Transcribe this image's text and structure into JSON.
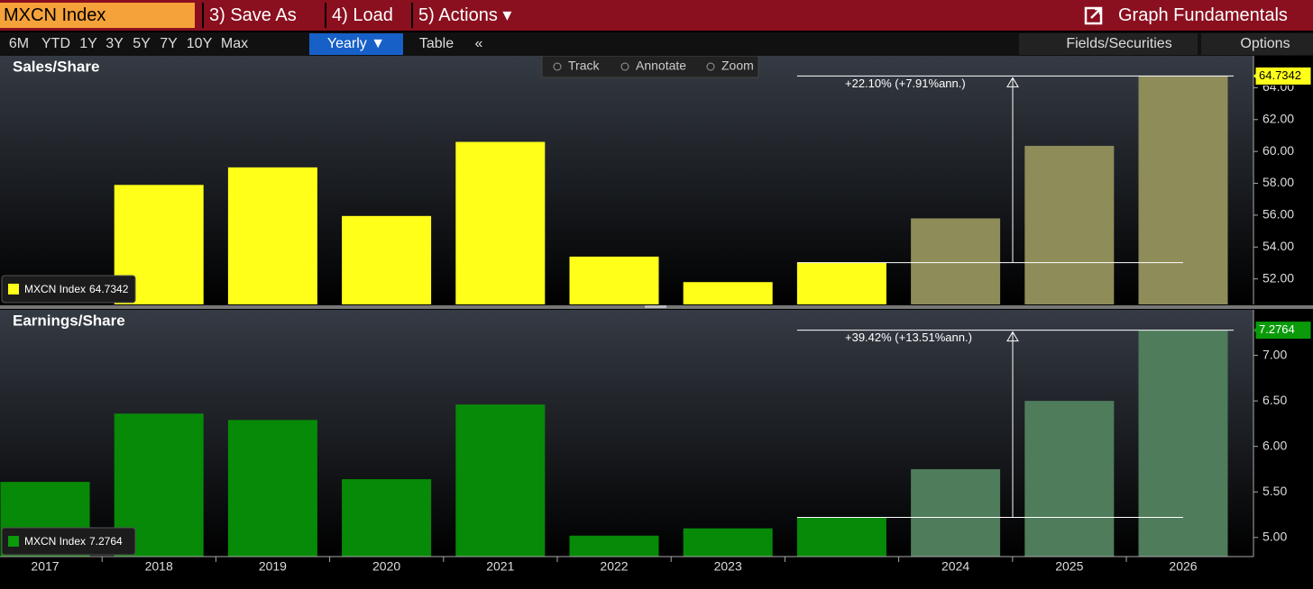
{
  "top_bar": {
    "security": "MXCN Index",
    "menu": [
      "3) Save As",
      "4) Load",
      "5) Actions ▾"
    ],
    "function_name": "Graph Fundamentals"
  },
  "range_bar": {
    "buttons": [
      "6M",
      "YTD",
      "1Y",
      "3Y",
      "5Y",
      "7Y",
      "10Y",
      "Max"
    ],
    "period": "Yearly ▼",
    "table": "Table",
    "collapse": "«",
    "right_buttons": [
      "Fields/Securities",
      "Options"
    ]
  },
  "chart_tools": [
    "Track",
    "Annotate",
    "Zoom"
  ],
  "chart_data": [
    {
      "type": "bar",
      "title": "Sales/Share",
      "series_name": "MXCN Index",
      "categories": [
        "2017",
        "2018",
        "2019",
        "2020",
        "2021",
        "2022",
        "2023",
        null,
        "2024",
        "2025",
        "2026"
      ],
      "values": [
        null,
        57.9,
        59.0,
        55.95,
        60.6,
        53.4,
        51.8,
        53.02,
        55.8,
        60.35,
        64.7342
      ],
      "value_labels": [
        null,
        null,
        null,
        null,
        null,
        null,
        null,
        null,
        null,
        null,
        "64.7342"
      ],
      "bar_colors": [
        "#ffff1a",
        "#ffff1a",
        "#ffff1a",
        "#ffff1a",
        "#ffff1a",
        "#ffff1a",
        "#ffff1a",
        "#ffff1a",
        "#8e8c58",
        "#8e8c58",
        "#8e8c58"
      ],
      "annotation": "+22.10% (+7.91%ann.)",
      "ylim": [
        50.4,
        66.0
      ],
      "yticks": [
        {
          "value": 52,
          "label": "52.00"
        },
        {
          "value": 54,
          "label": "54.00"
        },
        {
          "value": 56,
          "label": "56.00"
        },
        {
          "value": 58,
          "label": "58.00"
        },
        {
          "value": 60,
          "label": "60.00"
        },
        {
          "value": 62,
          "label": "62.00"
        },
        {
          "value": 64,
          "label": "64.00"
        }
      ]
    },
    {
      "type": "bar",
      "title": "Earnings/Share",
      "series_name": "MXCN Index",
      "categories": [
        "2017",
        "2018",
        "2019",
        "2020",
        "2021",
        "2022",
        "2023",
        null,
        "2024",
        "2025",
        "2026"
      ],
      "values": [
        5.61,
        6.36,
        6.29,
        5.64,
        6.46,
        5.02,
        5.1,
        5.22,
        5.75,
        6.5,
        7.2764
      ],
      "value_labels": [
        null,
        null,
        null,
        null,
        null,
        null,
        null,
        null,
        null,
        null,
        "7.2764"
      ],
      "bar_colors": [
        "#078a07",
        "#078a07",
        "#078a07",
        "#078a07",
        "#078a07",
        "#078a07",
        "#078a07",
        "#078a07",
        "#4f7c5b",
        "#4f7c5b",
        "#4f7c5b"
      ],
      "annotation": "+39.42% (+13.51%ann.)",
      "ylim": [
        4.79,
        7.5
      ],
      "yticks": [
        {
          "value": 5,
          "label": "5.00"
        },
        {
          "value": 5.5,
          "label": "5.50"
        },
        {
          "value": 6,
          "label": "6.00"
        },
        {
          "value": 6.5,
          "label": "6.50"
        },
        {
          "value": 7,
          "label": "7.00"
        }
      ]
    }
  ]
}
